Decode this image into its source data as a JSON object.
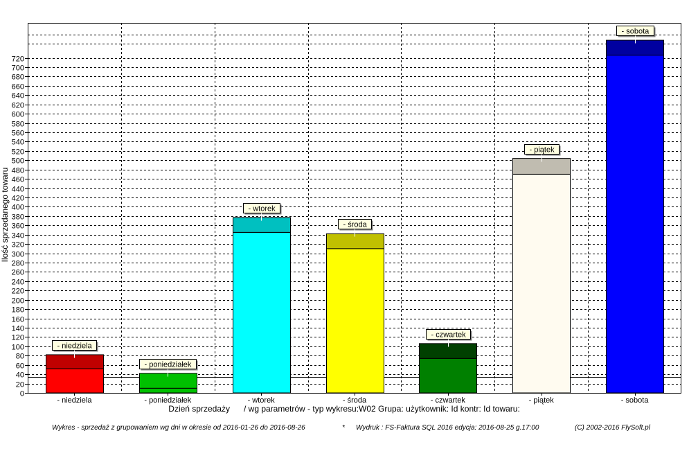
{
  "chart_data": {
    "type": "bar",
    "ylabel": "Ilość sprzedanego towaru",
    "xlabel": "Dzień sprzedaży",
    "subtitle": "/ wg parametrów - typ wykresu:W02 Grupa: użytkownik: Id kontr: Id towaru:",
    "ylim": [
      0,
      730
    ],
    "ytick_step": 20,
    "grid": true,
    "reference_line": 34,
    "categories": [
      {
        "label": "-  niedziela",
        "tag": "-  niedziela",
        "value": 82,
        "lower": 52,
        "top_color": "#c00000",
        "bottom_color": "#ff0000"
      },
      {
        "label": "-  poniedziałek",
        "tag": "-  poniedziałek",
        "value": 42,
        "lower": 10,
        "top_color": "#00c000",
        "bottom_color": "#00c000"
      },
      {
        "label": "-  wtorek",
        "tag": "-  wtorek",
        "value": 377,
        "lower": 345,
        "top_color": "#00c0c0",
        "bottom_color": "#00ffff"
      },
      {
        "label": "-  środa",
        "tag": "-  środa",
        "value": 342,
        "lower": 310,
        "top_color": "#c0c000",
        "bottom_color": "#ffff00"
      },
      {
        "label": "-  czwartek",
        "tag": "-  czwartek",
        "value": 106,
        "lower": 74,
        "top_color": "#004000",
        "bottom_color": "#008000"
      },
      {
        "label": "-  piątek",
        "tag": "-  piątek",
        "value": 504,
        "lower": 470,
        "top_color": "#c0bcb0",
        "bottom_color": "#fffbf0"
      },
      {
        "label": "-  sobota",
        "tag": "-  sobota",
        "value": 758,
        "lower": 726,
        "top_color": "#0000a0",
        "bottom_color": "#0000ff"
      }
    ]
  },
  "footer": {
    "left": "Wykres - sprzedaż z grupowaniem wg dni w okresie od 2016-01-26 do 2016-08-26",
    "sep": "*",
    "middle": "Wydruk : FS-Faktura SQL 2016  edycja: 2016-08-25  g.17:00",
    "right": "(C) 2002-2016  FlySoft.pl"
  }
}
